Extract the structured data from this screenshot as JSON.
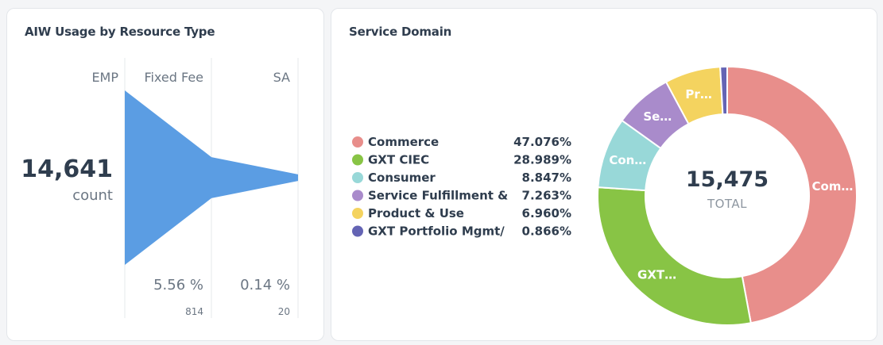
{
  "chart_data": [
    {
      "type": "funnel",
      "title": "AIW Usage by Resource Type",
      "stages": [
        {
          "label": "EMP",
          "value": 14641
        },
        {
          "label": "Fixed Fee",
          "value": 814,
          "percent_label": "5.56 %",
          "count_label": "814"
        },
        {
          "label": "SA",
          "value": 20,
          "percent_label": "0.14 %",
          "count_label": "20"
        }
      ],
      "headline": {
        "value": "14,641",
        "unit": "count"
      },
      "color": "#5b9de3"
    },
    {
      "type": "pie",
      "title": "Service Domain",
      "total": {
        "value": "15,475",
        "label": "TOTAL"
      },
      "series": [
        {
          "name": "Commerce",
          "legend_label": "Commerce",
          "slice_label": "Com…",
          "value": 47.076,
          "value_label": "47.076%",
          "color": "#e88e8b"
        },
        {
          "name": "GXT CIEC",
          "legend_label": "GXT CIEC",
          "slice_label": "GXT…",
          "value": 28.989,
          "value_label": "28.989%",
          "color": "#88c445"
        },
        {
          "name": "Consumer",
          "legend_label": "Consumer",
          "slice_label": "Con…",
          "value": 8.847,
          "value_label": "8.847%",
          "color": "#98d8d8"
        },
        {
          "name": "Service Fulfillment &",
          "legend_label": "Service Fulfillment &",
          "slice_label": "Se…",
          "value": 7.263,
          "value_label": "7.263%",
          "color": "#a98bcb"
        },
        {
          "name": "Product & Use",
          "legend_label": "Product & Use",
          "slice_label": "Pr…",
          "value": 6.96,
          "value_label": "6.960%",
          "color": "#f4d35f"
        },
        {
          "name": "GXT Portfolio Mgmt/",
          "legend_label": "GXT Portfolio Mgmt/",
          "slice_label": "",
          "value": 0.866,
          "value_label": "0.866%",
          "color": "#6464b4"
        }
      ]
    }
  ]
}
